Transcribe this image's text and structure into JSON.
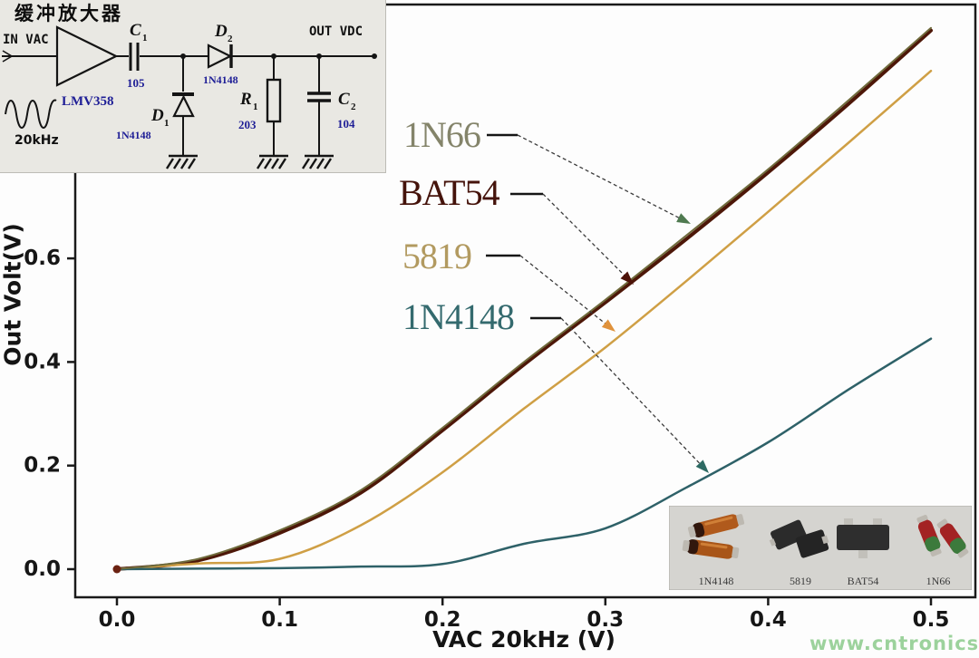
{
  "circuit_inset": {
    "title": "缓冲放大器",
    "input_label": "IN VAC",
    "opamp_part": "LMV358",
    "frequency": "20kHz",
    "c1_name": "C",
    "c1_sub": "1",
    "c1_value": "105",
    "d1_name": "D",
    "d1_sub": "1",
    "d1_part": "1N4148",
    "d2_name": "D",
    "d2_sub": "2",
    "d2_part": "1N4148",
    "r1_name": "R",
    "r1_sub": "1",
    "r1_value": "203",
    "c2_name": "C",
    "c2_sub": "2",
    "c2_value": "104",
    "output_label": "OUT VDC"
  },
  "chart_data": {
    "type": "line",
    "title": "",
    "xlabel": "VAC 20kHz (V)",
    "ylabel": "Out Volt(V)",
    "xlim": [
      -0.026,
      0.527
    ],
    "ylim": [
      -0.054,
      1.09
    ],
    "xticks": [
      0.0,
      0.1,
      0.2,
      0.3,
      0.4,
      0.5
    ],
    "yticks": [
      0.0,
      0.2,
      0.4,
      0.6
    ],
    "grid": false,
    "legend_position": "upper-left-annotations",
    "x": [
      0.0,
      0.05,
      0.1,
      0.15,
      0.2,
      0.25,
      0.3,
      0.35,
      0.4,
      0.45,
      0.5
    ],
    "series": [
      {
        "name": "1N66",
        "color": "#6f6b3c",
        "label_color": "#84846a",
        "width": 2,
        "values": [
          0.0,
          0.02,
          0.075,
          0.153,
          0.273,
          0.4,
          0.52,
          0.645,
          0.772,
          0.907,
          1.045
        ]
      },
      {
        "name": "BAT54",
        "color": "#4d1708",
        "label_color": "#45130b",
        "width": 4,
        "values": [
          0.0,
          0.017,
          0.07,
          0.148,
          0.268,
          0.395,
          0.515,
          0.638,
          0.766,
          0.9,
          1.04
        ]
      },
      {
        "name": "5819",
        "color": "#cf9f45",
        "label_color": "#b29a60",
        "width": 2.5,
        "values": [
          0.0,
          0.011,
          0.02,
          0.085,
          0.187,
          0.31,
          0.428,
          0.557,
          0.69,
          0.825,
          0.962
        ]
      },
      {
        "name": "1N4148",
        "color": "#2e6168",
        "label_color": "#346a6e",
        "width": 2.5,
        "values": [
          0.0,
          0.001,
          0.002,
          0.005,
          0.01,
          0.049,
          0.079,
          0.158,
          0.245,
          0.348,
          0.445
        ]
      }
    ],
    "annotations": [
      {
        "label": "1N66",
        "arrow_color": "#4f7a50"
      },
      {
        "label": "BAT54",
        "arrow_color": "#4d1208"
      },
      {
        "label": "5819",
        "arrow_color": "#e0923c"
      },
      {
        "label": "1N4148",
        "arrow_color": "#2d6a63"
      }
    ]
  },
  "photo_inset": {
    "items": [
      {
        "label": "1N4148"
      },
      {
        "label": "5819"
      },
      {
        "label": "BAT54"
      },
      {
        "label": "1N66"
      }
    ]
  },
  "watermark": "www.cntronics.com"
}
